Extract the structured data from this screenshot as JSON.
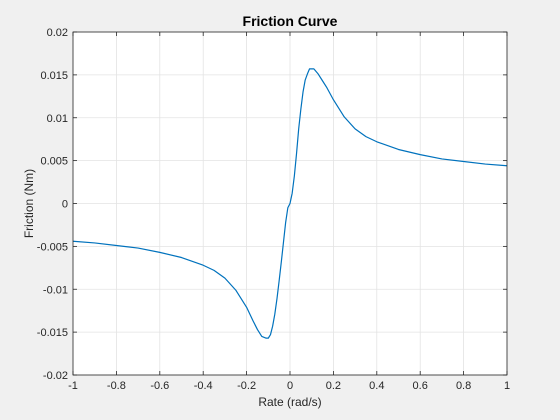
{
  "chart_data": {
    "type": "line",
    "title": "Friction Curve",
    "xlabel": "Rate (rad/s)",
    "ylabel": "Friction (Nm)",
    "xlim": [
      -1,
      1
    ],
    "ylim": [
      -0.02,
      0.02
    ],
    "grid": true,
    "xticks": [
      -1,
      -0.8,
      -0.6,
      -0.4,
      -0.2,
      0,
      0.2,
      0.4,
      0.6,
      0.8,
      1
    ],
    "xtick_labels": [
      "-1",
      "-0.8",
      "-0.6",
      "-0.4",
      "-0.2",
      "0",
      "0.2",
      "0.4",
      "0.6",
      "0.8",
      "1"
    ],
    "yticks": [
      -0.02,
      -0.015,
      -0.01,
      -0.005,
      0,
      0.005,
      0.01,
      0.015,
      0.02
    ],
    "ytick_labels": [
      "-0.02",
      "-0.015",
      "-0.01",
      "-0.005",
      "0",
      "0.005",
      "0.01",
      "0.015",
      "0.02"
    ],
    "series": [
      {
        "color": "#0072bd",
        "x": [
          -1.0,
          -0.9,
          -0.8,
          -0.7,
          -0.6,
          -0.5,
          -0.4,
          -0.35,
          -0.3,
          -0.25,
          -0.2,
          -0.17,
          -0.15,
          -0.13,
          -0.11,
          -0.1,
          -0.09,
          -0.08,
          -0.07,
          -0.06,
          -0.05,
          -0.04,
          -0.03,
          -0.02,
          -0.01,
          0.0,
          0.01,
          0.02,
          0.03,
          0.04,
          0.05,
          0.06,
          0.07,
          0.08,
          0.09,
          0.1,
          0.11,
          0.13,
          0.15,
          0.17,
          0.2,
          0.25,
          0.3,
          0.35,
          0.4,
          0.5,
          0.6,
          0.7,
          0.8,
          0.9,
          1.0
        ],
        "y": [
          -0.0044,
          -0.0046,
          -0.0049,
          -0.0052,
          -0.0057,
          -0.0063,
          -0.0072,
          -0.0078,
          -0.0087,
          -0.0101,
          -0.0121,
          -0.0137,
          -0.0147,
          -0.0155,
          -0.0157,
          -0.0157,
          -0.0153,
          -0.0143,
          -0.0129,
          -0.0111,
          -0.009,
          -0.0068,
          -0.0045,
          -0.0022,
          -0.0005,
          0.0,
          0.0012,
          0.0032,
          0.0058,
          0.0087,
          0.011,
          0.013,
          0.0144,
          0.0151,
          0.0157,
          0.0157,
          0.0157,
          0.0151,
          0.0143,
          0.0135,
          0.0121,
          0.0101,
          0.0087,
          0.0078,
          0.0072,
          0.0063,
          0.0057,
          0.0052,
          0.0049,
          0.0046,
          0.0044
        ]
      }
    ]
  }
}
